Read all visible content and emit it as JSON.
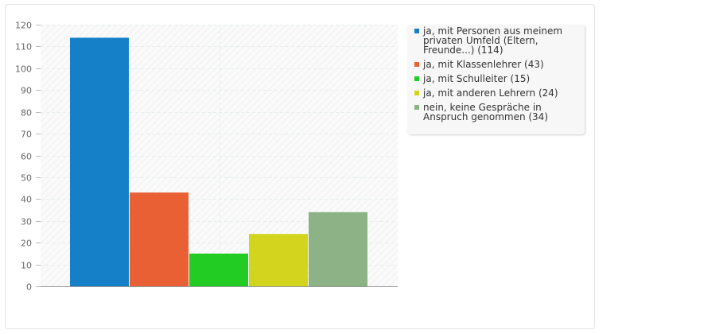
{
  "chart_data": {
    "type": "bar",
    "categories": [
      "ja, mit Personen aus meinem privaten Umfeld (Eltern, Freunde...) (114)",
      "ja, mit Klassenlehrer (43)",
      "ja, mit Schulleiter (15)",
      "ja, mit anderen Lehrern (24)",
      "nein, keine Gespräche in Anspruch genommen (34)"
    ],
    "values": [
      114,
      43,
      15,
      24,
      34
    ],
    "colors": [
      "#1580c8",
      "#e86033",
      "#22cc22",
      "#d3d41e",
      "#8db286"
    ],
    "ylim": [
      0,
      120
    ],
    "yticks": [
      0,
      10,
      20,
      30,
      40,
      50,
      60,
      70,
      80,
      90,
      100,
      110,
      120
    ],
    "grid": true,
    "legend_position": "right"
  }
}
